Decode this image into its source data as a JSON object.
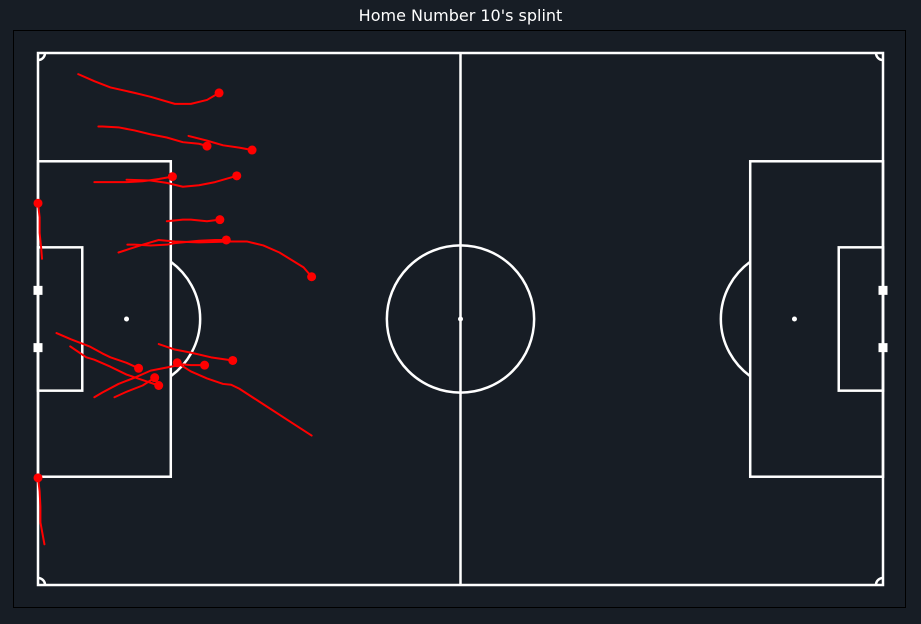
{
  "title": "Home Number 10's splint",
  "colors": {
    "background": "#171d25",
    "pitch_lines": "#ffffff",
    "runs": "#ff0000"
  },
  "chart_data": {
    "type": "pitch-tracking",
    "title": "Home Number 10's splint",
    "pitch": {
      "length": 105,
      "width": 68
    },
    "runs": [
      {
        "points": [
          [
            34,
            28.6
          ],
          [
            33,
            27.4
          ],
          [
            30,
            25.5
          ],
          [
            28,
            24.6
          ],
          [
            26,
            24.1
          ],
          [
            24,
            24.1
          ],
          [
            20,
            24.2
          ],
          [
            17,
            24.1
          ],
          [
            15,
            23.9
          ],
          [
            13,
            24.5
          ],
          [
            10,
            25.5
          ]
        ]
      },
      {
        "points": [
          [
            17.3,
            39.6
          ],
          [
            19,
            40.7
          ],
          [
            21,
            41.6
          ],
          [
            23,
            42.3
          ],
          [
            24,
            42.4
          ],
          [
            25,
            42.9
          ],
          [
            28,
            44.9
          ],
          [
            31,
            46.9
          ],
          [
            34,
            48.9
          ]
        ]
      },
      {
        "points": [
          [
            20.7,
            39.9
          ],
          [
            19,
            39.9
          ],
          [
            18,
            39.8
          ],
          [
            14,
            40.6
          ],
          [
            12,
            41.5
          ],
          [
            10,
            42.3
          ],
          [
            8,
            43.4
          ],
          [
            7,
            44.0
          ]
        ]
      },
      {
        "points": [
          [
            15.0,
            42.5
          ],
          [
            13,
            41.8
          ],
          [
            11,
            41.1
          ],
          [
            9,
            40.1
          ],
          [
            7,
            39.2
          ],
          [
            6,
            38.9
          ],
          [
            4,
            37.5
          ]
        ]
      },
      {
        "points": [
          [
            22.5,
            5.1
          ],
          [
            21,
            6.0
          ],
          [
            19,
            6.5
          ],
          [
            17,
            6.5
          ],
          [
            14,
            5.6
          ],
          [
            12,
            5.1
          ],
          [
            9,
            4.4
          ],
          [
            7,
            3.6
          ],
          [
            5,
            2.7
          ]
        ]
      },
      {
        "points": [
          [
            24.7,
            15.7
          ],
          [
            22,
            16.5
          ],
          [
            20,
            16.9
          ],
          [
            18,
            17.1
          ],
          [
            16,
            16.6
          ],
          [
            14,
            16.3
          ],
          [
            11,
            16.2
          ]
        ]
      },
      {
        "points": [
          [
            21.0,
            11.9
          ],
          [
            20,
            11.6
          ],
          [
            18,
            11.4
          ],
          [
            16,
            10.8
          ],
          [
            14,
            10.4
          ],
          [
            12,
            9.9
          ],
          [
            10,
            9.5
          ],
          [
            8,
            9.4
          ],
          [
            7.5,
            9.4
          ]
        ]
      },
      {
        "points": [
          [
            23.4,
            23.9
          ],
          [
            22,
            23.9
          ],
          [
            20,
            24.0
          ],
          [
            17,
            24.3
          ],
          [
            16,
            24.5
          ],
          [
            14,
            24.6
          ],
          [
            12,
            24.5
          ],
          [
            11.1,
            24.5
          ]
        ]
      },
      {
        "points": [
          [
            26.6,
            12.4
          ],
          [
            25,
            12.1
          ],
          [
            23,
            11.8
          ],
          [
            21,
            11.2
          ],
          [
            18.7,
            10.6
          ]
        ]
      },
      {
        "points": [
          [
            16.7,
            15.8
          ],
          [
            15,
            16.1
          ],
          [
            13,
            16.4
          ],
          [
            11,
            16.5
          ],
          [
            9,
            16.5
          ],
          [
            7,
            16.5
          ]
        ]
      },
      {
        "points": [
          [
            24.2,
            39.3
          ],
          [
            21.5,
            38.9
          ],
          [
            19,
            38.3
          ],
          [
            17,
            37.9
          ],
          [
            15.0,
            37.2
          ]
        ]
      },
      {
        "points": [
          [
            0,
            19.2
          ],
          [
            0.2,
            21
          ],
          [
            0.2,
            23
          ],
          [
            0.4,
            25
          ],
          [
            0.5,
            26.3
          ]
        ]
      },
      {
        "points": [
          [
            12.5,
            40.3
          ],
          [
            11,
            39.6
          ],
          [
            9,
            38.9
          ],
          [
            8,
            38.4
          ],
          [
            6.4,
            37.5
          ],
          [
            4.1,
            36.6
          ],
          [
            2.3,
            35.8
          ]
        ]
      },
      {
        "points": [
          [
            22.6,
            21.3
          ],
          [
            21,
            21.5
          ],
          [
            19,
            21.3
          ],
          [
            18,
            21.3
          ],
          [
            16,
            21.5
          ]
        ]
      },
      {
        "points": [
          [
            14.5,
            41.5
          ],
          [
            13,
            42.5
          ],
          [
            11,
            43.3
          ],
          [
            9.5,
            44.0
          ]
        ]
      },
      {
        "points": [
          [
            0,
            54.3
          ],
          [
            0.2,
            56
          ],
          [
            0.3,
            58
          ],
          [
            0.3,
            60
          ],
          [
            0.8,
            62.8
          ]
        ]
      }
    ]
  }
}
